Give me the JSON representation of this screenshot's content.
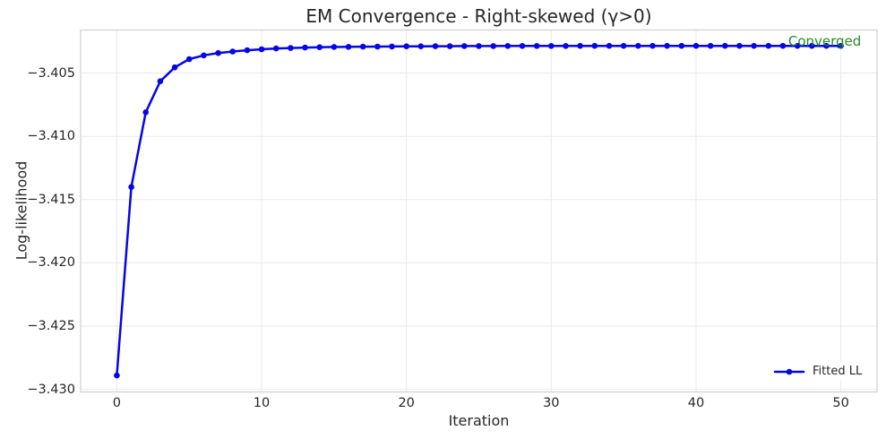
{
  "chart_data": {
    "type": "line",
    "title": "EM Convergence - Right-skewed (γ>0)",
    "xlabel": "Iteration",
    "ylabel": "Log-likelihood",
    "xlim": [
      -2.5,
      52.5
    ],
    "ylim": [
      -3.4302,
      -3.4016
    ],
    "xticks": [
      0,
      10,
      20,
      30,
      40,
      50
    ],
    "xtick_labels": [
      "0",
      "10",
      "20",
      "30",
      "40",
      "50"
    ],
    "yticks": [
      -3.405,
      -3.41,
      -3.415,
      -3.42,
      -3.425,
      -3.43
    ],
    "ytick_labels": [
      "−3.405",
      "−3.410",
      "−3.415",
      "−3.420",
      "−3.425",
      "−3.430"
    ],
    "grid": true,
    "legend": {
      "position": "lower-right",
      "entries": [
        {
          "label": "Fitted LL",
          "color": "#0505e8",
          "marker": "circle"
        }
      ]
    },
    "annotation": {
      "text": "Converged",
      "color": "#228b22",
      "x": 50,
      "y": -3.40285
    },
    "series": [
      {
        "name": "Fitted LL",
        "color": "#0505e8",
        "marker": "circle",
        "x": [
          0,
          1,
          2,
          3,
          4,
          5,
          6,
          7,
          8,
          9,
          10,
          11,
          12,
          13,
          14,
          15,
          16,
          17,
          18,
          19,
          20,
          21,
          22,
          23,
          24,
          25,
          26,
          27,
          28,
          29,
          30,
          31,
          32,
          33,
          34,
          35,
          36,
          37,
          38,
          39,
          40,
          41,
          42,
          43,
          44,
          45,
          46,
          47,
          48,
          49,
          50
        ],
        "values": [
          -3.4289,
          -3.414,
          -3.4081,
          -3.40565,
          -3.40455,
          -3.4039,
          -3.4036,
          -3.40342,
          -3.4033,
          -3.4032,
          -3.40312,
          -3.40306,
          -3.40302,
          -3.40299,
          -3.40296,
          -3.40294,
          -3.40293,
          -3.40292,
          -3.40291,
          -3.4029,
          -3.40289,
          -3.40289,
          -3.40288,
          -3.40288,
          -3.40287,
          -3.40287,
          -3.40287,
          -3.40286,
          -3.40286,
          -3.40286,
          -3.40286,
          -3.40286,
          -3.40285,
          -3.40285,
          -3.40285,
          -3.40285,
          -3.40285,
          -3.40285,
          -3.40285,
          -3.40285,
          -3.40285,
          -3.40285,
          -3.40285,
          -3.40285,
          -3.40285,
          -3.40285,
          -3.40285,
          -3.40285,
          -3.40285,
          -3.40285,
          -3.40285
        ]
      }
    ],
    "colors": {
      "line": "#0505e8",
      "annotation_text": "#228b22",
      "grid": "#e9e9e9",
      "frame": "#cfcfcf",
      "text": "#262626",
      "background": "#ffffff"
    }
  }
}
